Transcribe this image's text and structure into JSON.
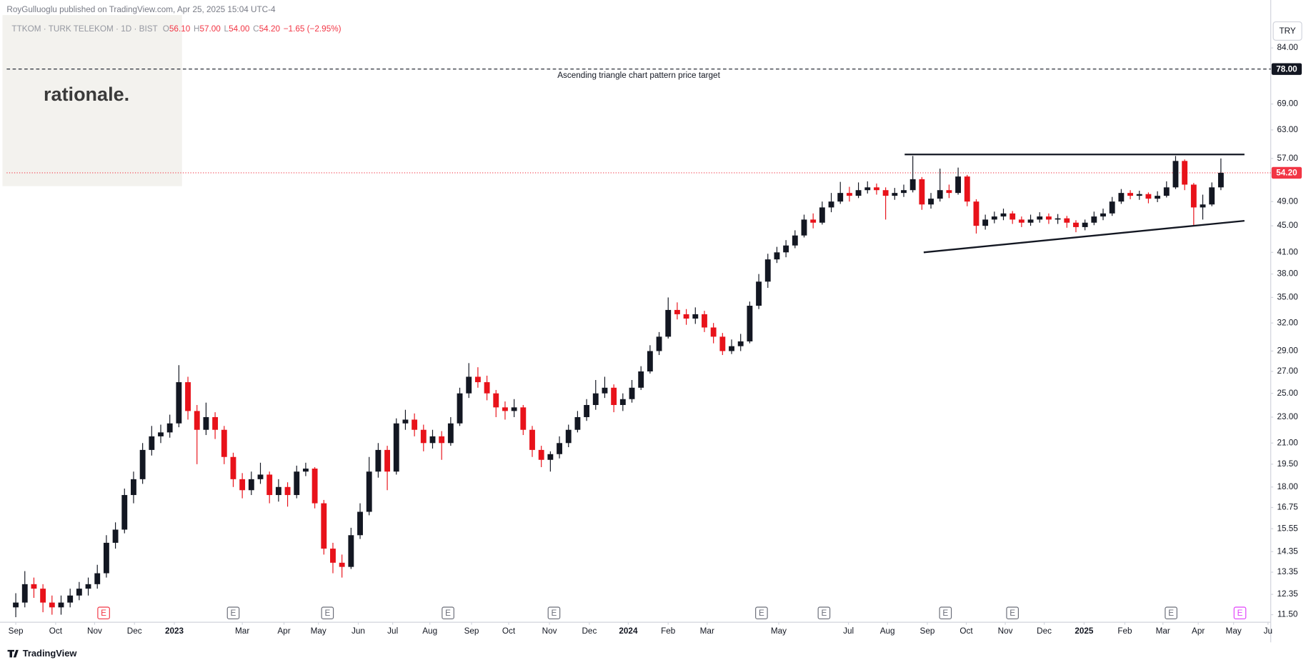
{
  "header": {
    "published": "RoyGulluoglu published on TradingView.com, Apr 25, 2025 15:04 UTC-4",
    "symbol": "TTKOM · TURK TELEKOM · 1D · BIST",
    "ohlc": [
      {
        "key": "O",
        "value": "56.10"
      },
      {
        "key": "H",
        "value": "57.00"
      },
      {
        "key": "L",
        "value": "54.00"
      },
      {
        "key": "C",
        "value": "54.20"
      }
    ],
    "change": "−1.65 (−2.95%)",
    "currency": "TRY"
  },
  "watermark": "rationale.",
  "footer": "TradingView",
  "chart_data": {
    "type": "candlestick",
    "log_scale": true,
    "grid": false,
    "up_color": "#131722",
    "down_color": "#e8121a",
    "xlim": [
      -1,
      138.5
    ],
    "ylim": [
      11.2,
      93.7
    ],
    "yticks": [
      {
        "value": 84,
        "label": "84.00"
      },
      {
        "value": 69,
        "label": "69.00"
      },
      {
        "value": 63,
        "label": "63.00"
      },
      {
        "value": 57,
        "label": "57.00"
      },
      {
        "value": 49,
        "label": "49.00"
      },
      {
        "value": 45,
        "label": "45.00"
      },
      {
        "value": 41,
        "label": "41.00"
      },
      {
        "value": 38,
        "label": "38.00"
      },
      {
        "value": 35,
        "label": "35.00"
      },
      {
        "value": 32,
        "label": "32.00"
      },
      {
        "value": 29,
        "label": "29.00"
      },
      {
        "value": 27,
        "label": "27.00"
      },
      {
        "value": 25,
        "label": "25.00"
      },
      {
        "value": 23,
        "label": "23.00"
      },
      {
        "value": 21,
        "label": "21.00"
      },
      {
        "value": 19.5,
        "label": "19.50"
      },
      {
        "value": 18,
        "label": "18.00"
      },
      {
        "value": 16.75,
        "label": "16.75"
      },
      {
        "value": 15.55,
        "label": "15.55"
      },
      {
        "value": 14.35,
        "label": "14.35"
      },
      {
        "value": 13.35,
        "label": "13.35"
      },
      {
        "value": 12.35,
        "label": "12.35"
      },
      {
        "value": 11.5,
        "label": "11.50"
      }
    ],
    "xticks": [
      {
        "value": 0,
        "label": "Sep"
      },
      {
        "value": 4.4,
        "label": "Oct"
      },
      {
        "value": 8.7,
        "label": "Nov"
      },
      {
        "value": 13.1,
        "label": "Dec"
      },
      {
        "value": 17.5,
        "label": "2023"
      },
      {
        "value": 25,
        "label": "Mar"
      },
      {
        "value": 29.6,
        "label": "Apr"
      },
      {
        "value": 33.4,
        "label": "May"
      },
      {
        "value": 37.8,
        "label": "Jun"
      },
      {
        "value": 41.6,
        "label": "Jul"
      },
      {
        "value": 45.7,
        "label": "Aug"
      },
      {
        "value": 50.3,
        "label": "Sep"
      },
      {
        "value": 54.4,
        "label": "Oct"
      },
      {
        "value": 58.9,
        "label": "Nov"
      },
      {
        "value": 63.3,
        "label": "Dec"
      },
      {
        "value": 67.6,
        "label": "2024"
      },
      {
        "value": 72,
        "label": "Feb"
      },
      {
        "value": 76.3,
        "label": "Mar"
      },
      {
        "value": 84.2,
        "label": "May"
      },
      {
        "value": 91.9,
        "label": "Jul"
      },
      {
        "value": 96.2,
        "label": "Aug"
      },
      {
        "value": 100.6,
        "label": "Sep"
      },
      {
        "value": 104.9,
        "label": "Oct"
      },
      {
        "value": 109.2,
        "label": "Nov"
      },
      {
        "value": 113.5,
        "label": "Dec"
      },
      {
        "value": 117.9,
        "label": "2025"
      },
      {
        "value": 122.4,
        "label": "Feb"
      },
      {
        "value": 126.6,
        "label": "Mar"
      },
      {
        "value": 130.5,
        "label": "Apr"
      },
      {
        "value": 134.4,
        "label": "May"
      },
      {
        "value": 138.2,
        "label": "Ju"
      }
    ],
    "ohlc": [
      [
        11.8,
        12.4,
        11.4,
        12.0
      ],
      [
        12.0,
        13.4,
        11.8,
        12.8
      ],
      [
        12.8,
        13.1,
        12.2,
        12.6
      ],
      [
        12.6,
        12.8,
        11.6,
        12.0
      ],
      [
        12.0,
        12.3,
        11.5,
        11.8
      ],
      [
        11.8,
        12.3,
        11.5,
        12.0
      ],
      [
        12.0,
        12.6,
        11.8,
        12.3
      ],
      [
        12.3,
        12.9,
        12.1,
        12.6
      ],
      [
        12.6,
        13.1,
        12.3,
        12.8
      ],
      [
        12.8,
        13.7,
        12.6,
        13.3
      ],
      [
        13.3,
        15.2,
        13.1,
        14.8
      ],
      [
        14.8,
        15.9,
        14.5,
        15.5
      ],
      [
        15.5,
        17.9,
        15.3,
        17.5
      ],
      [
        17.5,
        19.0,
        17.0,
        18.5
      ],
      [
        18.5,
        21.0,
        18.2,
        20.5
      ],
      [
        20.5,
        22.3,
        20.1,
        21.5
      ],
      [
        21.5,
        22.4,
        21.0,
        21.8
      ],
      [
        21.8,
        23.2,
        21.4,
        22.5
      ],
      [
        22.5,
        27.6,
        22.2,
        26.0
      ],
      [
        26.0,
        26.5,
        22.8,
        23.5
      ],
      [
        23.5,
        24.0,
        19.5,
        22.0
      ],
      [
        22.0,
        24.2,
        21.6,
        23.0
      ],
      [
        23.0,
        23.4,
        21.3,
        22.0
      ],
      [
        22.0,
        22.3,
        19.5,
        20.0
      ],
      [
        20.0,
        20.3,
        18.0,
        18.5
      ],
      [
        18.5,
        18.9,
        17.3,
        17.8
      ],
      [
        17.8,
        19.0,
        17.5,
        18.5
      ],
      [
        18.5,
        19.6,
        18.2,
        18.8
      ],
      [
        18.8,
        19.0,
        17.0,
        17.5
      ],
      [
        17.5,
        18.5,
        17.1,
        18.0
      ],
      [
        18.0,
        18.3,
        16.8,
        17.5
      ],
      [
        17.5,
        19.4,
        17.3,
        19.0
      ],
      [
        19.0,
        19.6,
        18.7,
        19.2
      ],
      [
        19.2,
        19.3,
        16.7,
        17.0
      ],
      [
        17.0,
        17.2,
        14.2,
        14.5
      ],
      [
        14.5,
        14.8,
        13.3,
        13.8
      ],
      [
        13.8,
        14.2,
        13.1,
        13.6
      ],
      [
        13.6,
        15.6,
        13.5,
        15.2
      ],
      [
        15.2,
        17.0,
        15.0,
        16.5
      ],
      [
        16.5,
        20.0,
        16.3,
        19.0
      ],
      [
        19.0,
        21.0,
        18.6,
        20.5
      ],
      [
        20.5,
        20.8,
        17.8,
        19.0
      ],
      [
        19.0,
        22.9,
        18.8,
        22.5
      ],
      [
        22.5,
        23.6,
        22.0,
        22.8
      ],
      [
        22.8,
        23.3,
        21.5,
        22.0
      ],
      [
        22.0,
        22.4,
        20.4,
        21.0
      ],
      [
        21.0,
        22.0,
        20.6,
        21.5
      ],
      [
        21.5,
        21.9,
        19.8,
        21.0
      ],
      [
        21.0,
        23.0,
        20.8,
        22.5
      ],
      [
        22.5,
        25.5,
        22.3,
        25.0
      ],
      [
        25.0,
        27.8,
        24.6,
        26.5
      ],
      [
        26.5,
        27.4,
        25.5,
        26.0
      ],
      [
        26.0,
        26.6,
        24.4,
        25.0
      ],
      [
        25.0,
        25.3,
        23.0,
        23.8
      ],
      [
        23.8,
        24.3,
        22.8,
        23.5
      ],
      [
        23.5,
        24.5,
        23.0,
        23.8
      ],
      [
        23.8,
        24.0,
        21.6,
        22.0
      ],
      [
        22.0,
        22.3,
        20.0,
        20.5
      ],
      [
        20.5,
        20.8,
        19.3,
        19.8
      ],
      [
        19.8,
        20.4,
        19.0,
        20.2
      ],
      [
        20.2,
        21.5,
        19.9,
        21.0
      ],
      [
        21.0,
        22.4,
        20.7,
        22.0
      ],
      [
        22.0,
        23.5,
        21.8,
        23.0
      ],
      [
        23.0,
        24.5,
        22.7,
        24.0
      ],
      [
        24.0,
        26.2,
        23.6,
        25.0
      ],
      [
        25.0,
        26.5,
        24.6,
        25.5
      ],
      [
        25.5,
        25.8,
        23.4,
        24.0
      ],
      [
        24.0,
        25.0,
        23.5,
        24.5
      ],
      [
        24.5,
        26.2,
        24.2,
        25.5
      ],
      [
        25.5,
        27.5,
        25.3,
        27.0
      ],
      [
        27.0,
        29.6,
        26.8,
        29.0
      ],
      [
        29.0,
        31.0,
        28.6,
        30.5
      ],
      [
        30.5,
        35.0,
        30.3,
        33.5
      ],
      [
        33.5,
        34.4,
        32.4,
        33.0
      ],
      [
        33.0,
        33.6,
        31.8,
        32.5
      ],
      [
        32.5,
        33.8,
        31.9,
        33.0
      ],
      [
        33.0,
        33.4,
        31.0,
        31.5
      ],
      [
        31.5,
        32.0,
        29.8,
        30.5
      ],
      [
        30.5,
        30.9,
        28.6,
        29.0
      ],
      [
        29.0,
        30.2,
        28.7,
        29.5
      ],
      [
        29.5,
        30.8,
        29.0,
        30.0
      ],
      [
        30.0,
        34.5,
        29.8,
        34.0
      ],
      [
        34.0,
        38.0,
        33.6,
        37.0
      ],
      [
        37.0,
        40.8,
        36.2,
        40.0
      ],
      [
        40.0,
        41.8,
        39.5,
        41.0
      ],
      [
        41.0,
        42.8,
        40.3,
        42.0
      ],
      [
        42.0,
        44.3,
        41.6,
        43.5
      ],
      [
        43.5,
        46.8,
        43.2,
        46.0
      ],
      [
        46.0,
        47.0,
        44.6,
        45.5
      ],
      [
        45.5,
        49.0,
        45.2,
        48.0
      ],
      [
        48.0,
        50.5,
        47.2,
        49.0
      ],
      [
        49.0,
        52.5,
        48.6,
        50.5
      ],
      [
        50.5,
        51.6,
        49.0,
        50.0
      ],
      [
        50.0,
        52.4,
        49.6,
        51.0
      ],
      [
        51.0,
        52.6,
        50.4,
        51.5
      ],
      [
        51.5,
        52.2,
        50.2,
        51.0
      ],
      [
        51.0,
        51.5,
        46.0,
        50.0
      ],
      [
        50.0,
        51.4,
        49.3,
        50.5
      ],
      [
        50.5,
        52.0,
        49.8,
        51.0
      ],
      [
        51.0,
        57.5,
        50.6,
        53.0
      ],
      [
        53.0,
        53.4,
        47.6,
        48.5
      ],
      [
        48.5,
        50.5,
        47.8,
        49.5
      ],
      [
        49.5,
        55.0,
        49.0,
        51.0
      ],
      [
        51.0,
        52.0,
        49.6,
        50.5
      ],
      [
        50.5,
        55.2,
        50.2,
        53.5
      ],
      [
        53.5,
        53.8,
        48.2,
        49.0
      ],
      [
        49.0,
        49.4,
        43.8,
        45.0
      ],
      [
        45.0,
        46.8,
        44.4,
        46.0
      ],
      [
        46.0,
        47.3,
        45.4,
        46.5
      ],
      [
        46.5,
        47.8,
        45.9,
        47.0
      ],
      [
        47.0,
        47.4,
        45.3,
        46.0
      ],
      [
        46.0,
        46.5,
        44.8,
        45.5
      ],
      [
        45.5,
        46.8,
        45.0,
        46.0
      ],
      [
        46.0,
        47.2,
        45.5,
        46.5
      ],
      [
        46.5,
        47.0,
        45.3,
        46.0
      ],
      [
        46.0,
        46.9,
        45.3,
        46.2
      ],
      [
        46.2,
        46.6,
        44.7,
        45.5
      ],
      [
        45.5,
        45.9,
        44.0,
        44.8
      ],
      [
        44.8,
        46.0,
        44.3,
        45.5
      ],
      [
        45.5,
        47.3,
        45.1,
        46.5
      ],
      [
        46.5,
        47.8,
        45.9,
        47.0
      ],
      [
        47.0,
        49.8,
        46.6,
        49.0
      ],
      [
        49.0,
        51.2,
        48.6,
        50.5
      ],
      [
        50.5,
        51.0,
        49.4,
        50.0
      ],
      [
        50.0,
        50.9,
        49.3,
        50.3
      ],
      [
        50.3,
        50.6,
        48.7,
        49.5
      ],
      [
        49.5,
        50.8,
        48.9,
        50.0
      ],
      [
        50.0,
        52.6,
        49.7,
        51.5
      ],
      [
        51.5,
        57.5,
        51.2,
        56.5
      ],
      [
        56.5,
        56.8,
        51.0,
        52.0
      ],
      [
        52.0,
        52.3,
        45.0,
        48.0
      ],
      [
        48.0,
        50.2,
        46.0,
        48.5
      ],
      [
        48.5,
        52.4,
        48.2,
        51.5
      ],
      [
        51.5,
        57.0,
        51.0,
        54.2
      ]
    ],
    "trendlines": [
      {
        "x": [
          98.1,
          135.6
        ],
        "y": [
          57.8,
          57.8
        ]
      },
      {
        "x": [
          100.2,
          135.6
        ],
        "y": [
          41.0,
          45.8
        ]
      }
    ],
    "target": {
      "value": 78,
      "label": "78.00",
      "text": "Ascending triangle chart pattern price target"
    },
    "last_price": {
      "value": 54.2,
      "label": "54.20",
      "color": "#f23645"
    },
    "events": [
      {
        "x": 9.7,
        "label": "E",
        "color": "#f23645"
      },
      {
        "x": 24.0,
        "label": "E",
        "color": "#6a6d78"
      },
      {
        "x": 34.4,
        "label": "E",
        "color": "#6a6d78"
      },
      {
        "x": 47.7,
        "label": "E",
        "color": "#6a6d78"
      },
      {
        "x": 59.4,
        "label": "E",
        "color": "#6a6d78"
      },
      {
        "x": 82.3,
        "label": "E",
        "color": "#6a6d78"
      },
      {
        "x": 89.2,
        "label": "E",
        "color": "#6a6d78"
      },
      {
        "x": 102.6,
        "label": "E",
        "color": "#6a6d78"
      },
      {
        "x": 110.0,
        "label": "E",
        "color": "#6a6d78"
      },
      {
        "x": 127.5,
        "label": "E",
        "color": "#6a6d78"
      },
      {
        "x": 135.1,
        "label": "E",
        "color": "#e040fb"
      }
    ]
  }
}
